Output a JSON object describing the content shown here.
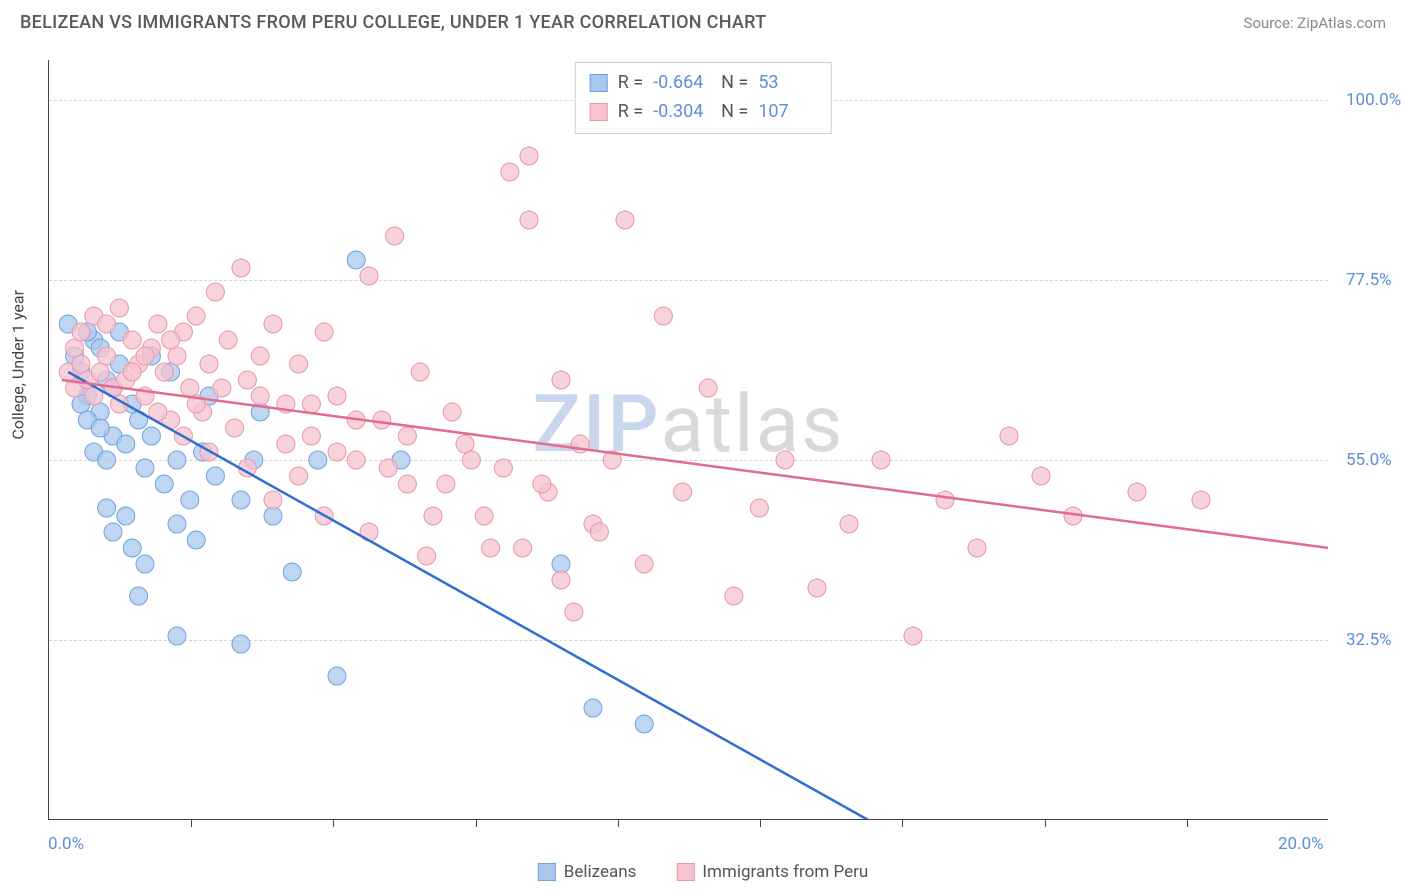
{
  "header": {
    "title": "BELIZEAN VS IMMIGRANTS FROM PERU COLLEGE, UNDER 1 YEAR CORRELATION CHART",
    "source_label": "Source: ZipAtlas.com"
  },
  "chart": {
    "type": "scatter",
    "ylabel": "College, Under 1 year",
    "xlim": [
      0,
      20
    ],
    "ylim": [
      10,
      105
    ],
    "x_ticks": [
      0,
      20
    ],
    "x_tick_labels": [
      "0.0%",
      "20.0%"
    ],
    "x_minor_ticks": [
      2.22,
      4.44,
      6.67,
      8.89,
      11.11,
      13.33,
      15.56,
      17.78
    ],
    "y_ticks": [
      32.5,
      55.0,
      77.5,
      100.0
    ],
    "y_tick_labels": [
      "32.5%",
      "55.0%",
      "77.5%",
      "100.0%"
    ],
    "background_color": "#ffffff",
    "grid_color": "#d5d5d5",
    "watermark": {
      "prefix": "ZIP",
      "suffix": "atlas"
    },
    "series": [
      {
        "name": "Belizeans",
        "fill_color": "#aac8ee",
        "stroke_color": "#6fa2dd",
        "line_color": "#2f6fd0",
        "marker_radius": 9,
        "marker_opacity": 0.75,
        "R": "-0.664",
        "N": "53",
        "trend": {
          "x1": 0.3,
          "y1": 66,
          "x2": 12.8,
          "y2": 10
        },
        "points": [
          [
            0.3,
            72
          ],
          [
            0.4,
            68
          ],
          [
            0.5,
            66
          ],
          [
            0.6,
            63
          ],
          [
            0.7,
            70
          ],
          [
            0.8,
            61
          ],
          [
            0.9,
            65
          ],
          [
            1.0,
            58
          ],
          [
            0.5,
            62
          ],
          [
            0.6,
            60
          ],
          [
            0.7,
            56
          ],
          [
            0.8,
            59
          ],
          [
            0.9,
            55
          ],
          [
            1.0,
            64
          ],
          [
            1.1,
            67
          ],
          [
            1.2,
            57
          ],
          [
            1.3,
            62
          ],
          [
            1.4,
            60
          ],
          [
            1.5,
            54
          ],
          [
            1.6,
            58
          ],
          [
            1.8,
            52
          ],
          [
            2.0,
            55
          ],
          [
            2.2,
            50
          ],
          [
            2.4,
            56
          ],
          [
            0.9,
            49
          ],
          [
            1.0,
            46
          ],
          [
            1.2,
            48
          ],
          [
            1.3,
            44
          ],
          [
            1.5,
            42
          ],
          [
            2.0,
            47
          ],
          [
            2.3,
            45
          ],
          [
            2.6,
            53
          ],
          [
            3.0,
            50
          ],
          [
            3.2,
            55
          ],
          [
            3.5,
            48
          ],
          [
            4.8,
            80
          ],
          [
            1.4,
            38
          ],
          [
            2.0,
            33
          ],
          [
            3.0,
            32
          ],
          [
            4.5,
            28
          ],
          [
            8.5,
            24
          ],
          [
            9.3,
            22
          ],
          [
            0.6,
            71
          ],
          [
            0.8,
            69
          ],
          [
            1.1,
            71
          ],
          [
            1.6,
            68
          ],
          [
            1.9,
            66
          ],
          [
            2.5,
            63
          ],
          [
            3.3,
            61
          ],
          [
            3.8,
            41
          ],
          [
            4.2,
            55
          ],
          [
            5.5,
            55
          ],
          [
            8.0,
            42
          ]
        ]
      },
      {
        "name": "Immigrants from Peru",
        "fill_color": "#f6c3cf",
        "stroke_color": "#ea97ac",
        "line_color": "#e36b8f",
        "marker_radius": 9,
        "marker_opacity": 0.75,
        "R": "-0.304",
        "N": "107",
        "trend": {
          "x1": 0.2,
          "y1": 65,
          "x2": 20,
          "y2": 44
        },
        "points": [
          [
            0.3,
            66
          ],
          [
            0.4,
            64
          ],
          [
            0.5,
            67
          ],
          [
            0.6,
            65
          ],
          [
            0.7,
            63
          ],
          [
            0.8,
            66
          ],
          [
            0.9,
            68
          ],
          [
            1.0,
            64
          ],
          [
            1.1,
            62
          ],
          [
            1.2,
            65
          ],
          [
            1.3,
            70
          ],
          [
            1.4,
            67
          ],
          [
            1.5,
            63
          ],
          [
            1.6,
            69
          ],
          [
            1.7,
            72
          ],
          [
            1.8,
            66
          ],
          [
            1.9,
            60
          ],
          [
            2.0,
            68
          ],
          [
            2.1,
            71
          ],
          [
            2.2,
            64
          ],
          [
            2.3,
            73
          ],
          [
            2.4,
            61
          ],
          [
            2.5,
            67
          ],
          [
            2.6,
            76
          ],
          [
            2.8,
            70
          ],
          [
            3.0,
            79
          ],
          [
            3.1,
            65
          ],
          [
            3.3,
            68
          ],
          [
            3.5,
            72
          ],
          [
            3.7,
            62
          ],
          [
            3.9,
            67
          ],
          [
            4.1,
            58
          ],
          [
            4.3,
            71
          ],
          [
            4.5,
            63
          ],
          [
            4.8,
            55
          ],
          [
            5.0,
            78
          ],
          [
            5.2,
            60
          ],
          [
            5.4,
            83
          ],
          [
            5.6,
            52
          ],
          [
            5.8,
            66
          ],
          [
            6.0,
            48
          ],
          [
            6.3,
            61
          ],
          [
            6.6,
            55
          ],
          [
            6.9,
            44
          ],
          [
            7.2,
            91
          ],
          [
            7.5,
            85
          ],
          [
            7.5,
            93
          ],
          [
            7.8,
            51
          ],
          [
            8.0,
            65
          ],
          [
            8.2,
            36
          ],
          [
            8.5,
            47
          ],
          [
            8.8,
            55
          ],
          [
            9.0,
            85
          ],
          [
            9.3,
            42
          ],
          [
            9.6,
            73
          ],
          [
            9.9,
            51
          ],
          [
            10.3,
            64
          ],
          [
            10.7,
            38
          ],
          [
            11.1,
            49
          ],
          [
            11.5,
            55
          ],
          [
            12.0,
            39
          ],
          [
            12.5,
            47
          ],
          [
            13.0,
            55
          ],
          [
            13.5,
            33
          ],
          [
            14.0,
            50
          ],
          [
            14.5,
            44
          ],
          [
            15.0,
            58
          ],
          [
            15.5,
            53
          ],
          [
            16.0,
            48
          ],
          [
            17.0,
            51
          ],
          [
            18.0,
            50
          ],
          [
            0.4,
            69
          ],
          [
            0.5,
            71
          ],
          [
            0.7,
            73
          ],
          [
            0.9,
            72
          ],
          [
            1.1,
            74
          ],
          [
            1.3,
            66
          ],
          [
            1.5,
            68
          ],
          [
            1.7,
            61
          ],
          [
            1.9,
            70
          ],
          [
            2.1,
            58
          ],
          [
            2.3,
            62
          ],
          [
            2.5,
            56
          ],
          [
            2.7,
            64
          ],
          [
            2.9,
            59
          ],
          [
            3.1,
            54
          ],
          [
            3.3,
            63
          ],
          [
            3.5,
            50
          ],
          [
            3.7,
            57
          ],
          [
            3.9,
            53
          ],
          [
            4.1,
            62
          ],
          [
            4.3,
            48
          ],
          [
            4.5,
            56
          ],
          [
            4.8,
            60
          ],
          [
            5.0,
            46
          ],
          [
            5.3,
            54
          ],
          [
            5.6,
            58
          ],
          [
            5.9,
            43
          ],
          [
            6.2,
            52
          ],
          [
            6.5,
            57
          ],
          [
            6.8,
            48
          ],
          [
            7.1,
            54
          ],
          [
            7.4,
            44
          ],
          [
            7.7,
            52
          ],
          [
            8.0,
            40
          ],
          [
            8.3,
            57
          ],
          [
            8.6,
            46
          ]
        ]
      }
    ],
    "legend_bottom": [
      {
        "label": "Belizeans",
        "fill": "#aac8ee",
        "stroke": "#6fa2dd"
      },
      {
        "label": "Immigrants from Peru",
        "fill": "#f6c3cf",
        "stroke": "#ea97ac"
      }
    ]
  }
}
